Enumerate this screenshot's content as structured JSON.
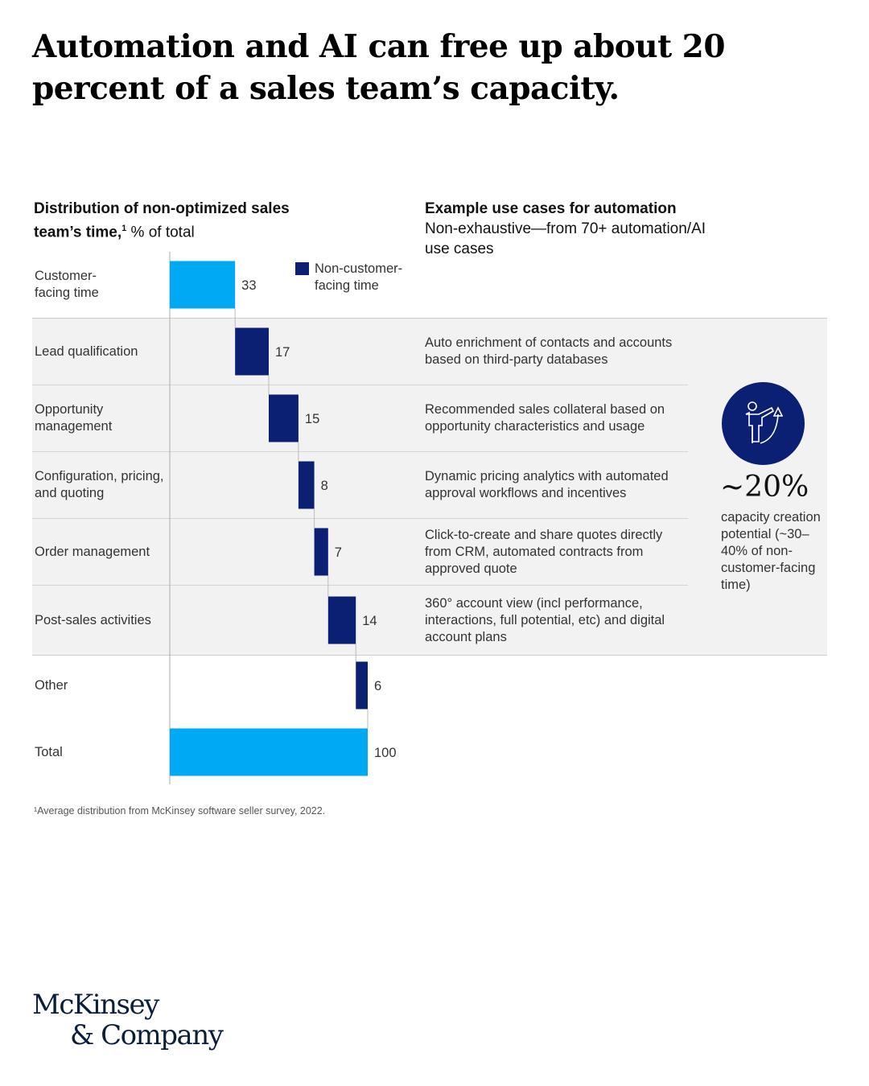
{
  "title": "Automation and AI can free up about 20 percent of a sales team’s capacity.",
  "left_header": {
    "bold": "Distribution of non-optimized sales team’s time,",
    "sup": "1",
    "rest": " % of total"
  },
  "right_header": {
    "bold": "Example use cases for automation",
    "sub": "Non-exhaustive—from 70+ automation/AI use cases"
  },
  "legend": {
    "label": "Non-customer-facing time"
  },
  "colors": {
    "customer_facing": "#00a9f4",
    "non_customer_facing": "#0b1f73",
    "panel": "#f2f2f2"
  },
  "chart_data": {
    "type": "waterfall",
    "title": "Distribution of non-optimized sales team’s time, % of total",
    "categories": [
      "Customer-facing time",
      "Lead qualification",
      "Opportunity management",
      "Configuration, pricing, and quoting",
      "Order management",
      "Post-sales activities",
      "Other",
      "Total"
    ],
    "values": [
      33,
      17,
      15,
      8,
      7,
      14,
      6,
      100
    ],
    "series_type": [
      "customer",
      "non-customer",
      "non-customer",
      "non-customer",
      "non-customer",
      "non-customer",
      "non-customer",
      "total"
    ],
    "xlim": [
      0,
      100
    ],
    "legend_placement": "top"
  },
  "use_cases": [
    "",
    "Auto enrichment of contacts and accounts based on third-party databases",
    "Recommended sales collateral based on opportunity characteristics and usage",
    "Dynamic pricing analytics with automated approval workflows and incentives",
    "Click-to-create and share quotes directly from CRM, automated contracts from approved quote",
    "360° account view (incl performance, interactions, full potential, etc) and digital account plans",
    ""
  ],
  "callout": {
    "icon": "person-growth-icon",
    "value": "~20%",
    "caption": "capacity creation potential (~30–40% of non-customer-facing time)"
  },
  "footnote": "¹Average distribution from McKinsey software seller survey, 2022.",
  "logo": {
    "line1": "McKinsey",
    "line2": "& Company"
  }
}
